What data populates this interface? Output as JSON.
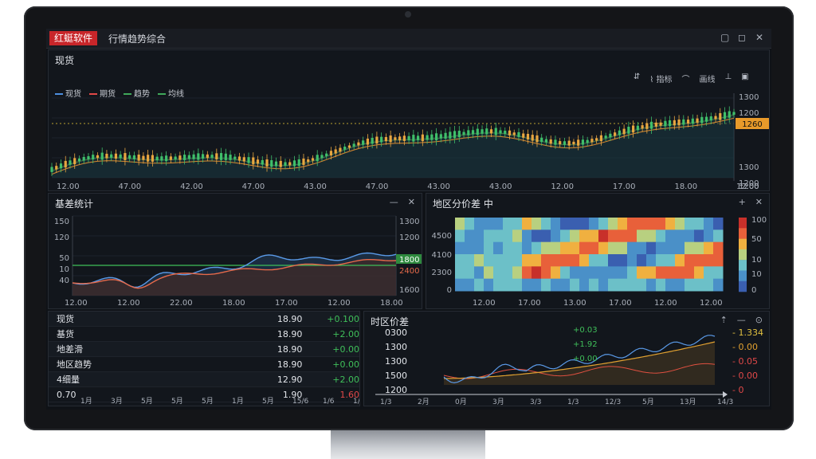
{
  "window": {
    "brand": "红蜓软件",
    "title": "行情趋势综合",
    "controls": [
      "▢",
      "◻",
      "✕"
    ]
  },
  "main_panel": {
    "title": "现货",
    "legend": [
      {
        "label": "现货",
        "color": "#4d8fe0"
      },
      {
        "label": "期货",
        "color": "#e04848"
      },
      {
        "label": "趋势",
        "color": "#3fa85a"
      },
      {
        "label": "均线",
        "color": "#3fa85a"
      }
    ],
    "toolbar": [
      "⇵",
      "⌇ 指标",
      "⌒",
      "画线",
      "⊥",
      "▣"
    ],
    "price_tag": "1260",
    "y_labels": [
      "1300",
      "1200",
      "1800",
      "1300",
      "1200",
      "1200"
    ],
    "x_labels": [
      "12.00",
      "47.00",
      "42.00",
      "47.00",
      "43.00",
      "47.00",
      "43.00",
      "43.00",
      "12.00",
      "17.00",
      "18.00",
      "12.00"
    ]
  },
  "basis_panel": {
    "title": "基差统计",
    "controls": [
      "—",
      "✕"
    ],
    "left_labels": [
      "150",
      "120",
      "50",
      "10",
      "40"
    ],
    "right_labels": [
      "1300",
      "1200",
      "1800",
      "2400",
      "1600"
    ],
    "right_tag_green": "1800",
    "right_tag_red": "2400",
    "x_labels": [
      "12.00",
      "12.00",
      "22.00",
      "18.00",
      "17.00",
      "12.00",
      "18.00"
    ]
  },
  "heatmap_panel": {
    "title": "地区分价差 中",
    "controls": [
      "+",
      "✕"
    ],
    "y_labels": [
      "4500",
      "4100",
      "2300",
      "0"
    ],
    "scale_labels": [
      "100",
      "50",
      "10",
      "10",
      "0"
    ],
    "x_labels": [
      "12.00",
      "17.00",
      "13.00",
      "17.00",
      "12.00",
      "12.00"
    ]
  },
  "table_panel": {
    "rows": [
      {
        "name": "现货",
        "value": "18.90",
        "change": "+0.100",
        "color": "#3fbf5a"
      },
      {
        "name": "基货",
        "value": "18.90",
        "change": "+2.00",
        "color": "#3fbf5a"
      },
      {
        "name": "地差滑",
        "value": "18.90",
        "change": "+0.00",
        "color": "#3fbf5a"
      },
      {
        "name": "地区趋势",
        "value": "18.90",
        "change": "+0.00",
        "color": "#3fbf5a"
      },
      {
        "name": "4细量",
        "value": "12.90",
        "change": "+2.00",
        "color": "#3fbf5a"
      },
      {
        "name": "0.70",
        "value": "1.90",
        "change": "1.60",
        "color": "#e04848"
      }
    ],
    "x_labels": [
      "1月",
      "3月",
      "5月",
      "5月",
      "5月",
      "1月",
      "5月",
      "15/6",
      "1/6",
      "1/6"
    ]
  },
  "spread_panel": {
    "title": "时区价差",
    "controls": [
      "⇡",
      "—",
      "⊙"
    ],
    "y_labels": [
      "0300",
      "1300",
      "1300",
      "1500",
      "1200"
    ],
    "annotations": [
      "+0.03",
      "+1.92",
      "+0.00"
    ],
    "right_labels": [
      {
        "text": "- 1.334",
        "color": "#e0c040"
      },
      {
        "text": "- 0.00",
        "color": "#e0a030"
      },
      {
        "text": "- 0.05",
        "color": "#e04848"
      },
      {
        "text": "- 0.00",
        "color": "#e04848"
      },
      {
        "text": "- 0",
        "color": "#e04848"
      }
    ],
    "x_labels": [
      "1/3",
      "2月",
      "0月",
      "3月",
      "3/3",
      "1/3",
      "12/3",
      "5月",
      "13月",
      "14/3"
    ]
  }
}
